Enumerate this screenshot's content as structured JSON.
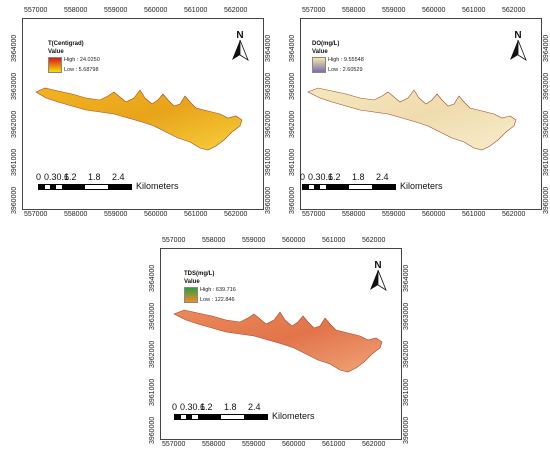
{
  "x_ticks": [
    "557000",
    "558000",
    "559000",
    "560000",
    "561000",
    "562000"
  ],
  "y_ticks": [
    "3964000",
    "3963000",
    "3962000",
    "3961000",
    "3960000"
  ],
  "north_label": "N",
  "scale": {
    "labels": [
      "0",
      "0.30.6",
      "1.2",
      "1.8",
      "2.4"
    ],
    "unit": "Kilometers"
  },
  "maps": [
    {
      "id": "temperature",
      "legend_title": "T(Centigrad)",
      "legend_sub": "Value",
      "high_label": "High : 24.0250",
      "low_label": "Low : 5.68798",
      "ramp_colors": [
        "#d7191c",
        "#f5e000"
      ],
      "fill_colors": [
        "#f2b320",
        "#e8a41a",
        "#f7cf3a"
      ]
    },
    {
      "id": "dissolved-oxygen",
      "legend_title": "DO(mg/L)",
      "legend_sub": "Value",
      "high_label": "High : 9.55548",
      "low_label": "Low : 2.60529",
      "ramp_colors": [
        "#f6e6a8",
        "#7a6fb0"
      ],
      "fill_colors": [
        "#f5e7bd",
        "#efdcae",
        "#f7edcb"
      ]
    },
    {
      "id": "total-dissolved-solids",
      "legend_title": "TDS(mg/L)",
      "legend_sub": "Value",
      "high_label": "High : 639.716",
      "low_label": "Low : 122.846",
      "ramp_colors": [
        "#2e9e3e",
        "#f28c28"
      ],
      "fill_colors": [
        "#ea8a5a",
        "#e2744a",
        "#f0a378"
      ]
    }
  ]
}
